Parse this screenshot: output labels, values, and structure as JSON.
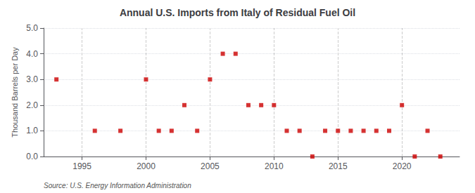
{
  "chart_data": {
    "type": "scatter",
    "title": "Annual U.S. Imports from Italy of Residual Fuel Oil",
    "ylabel": "Thousand Barrels per Day",
    "annotations": [
      "Source: U.S. Energy Information Administration"
    ],
    "x": [
      1993,
      1996,
      1998,
      2000,
      2001,
      2002,
      2003,
      2004,
      2005,
      2006,
      2007,
      2008,
      2009,
      2010,
      2011,
      2012,
      2013,
      2014,
      2015,
      2016,
      2017,
      2018,
      2019,
      2020,
      2021,
      2022,
      2023
    ],
    "values": [
      3.0,
      1.0,
      1.0,
      3.0,
      1.0,
      1.0,
      2.0,
      1.0,
      3.0,
      4.0,
      4.0,
      2.0,
      2.0,
      2.0,
      1.0,
      1.0,
      0.0,
      1.0,
      1.0,
      1.0,
      1.0,
      1.0,
      1.0,
      2.0,
      0.0,
      1.0,
      0.0
    ],
    "color": "#cc0000",
    "marker": "square",
    "xlim": [
      1992,
      2024.5
    ],
    "ylim": [
      0.0,
      5.0
    ],
    "xticks": [
      1995,
      2000,
      2005,
      2010,
      2015,
      2020
    ],
    "yticks": [
      {
        "value": 0.0,
        "label": "0.0"
      },
      {
        "value": 1.0,
        "label": "1.0"
      },
      {
        "value": 2.0,
        "label": "2.0"
      },
      {
        "value": 3.0,
        "label": "3.0"
      },
      {
        "value": 4.0,
        "label": "4.0"
      },
      {
        "value": 5.0,
        "label": "5.0"
      }
    ],
    "grid": true
  }
}
